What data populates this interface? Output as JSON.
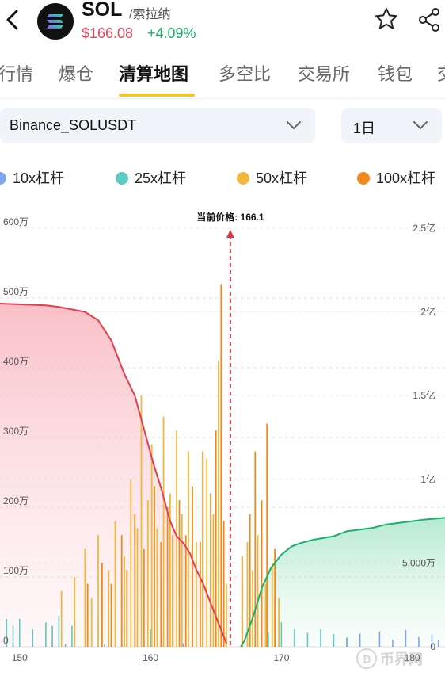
{
  "header": {
    "symbol": "SOL",
    "name_cn": "/索拉纳",
    "price": "$166.08",
    "change": "+4.09%",
    "price_color": "#e8445a",
    "change_color": "#17b26a"
  },
  "tabs": [
    {
      "label": "行情"
    },
    {
      "label": "爆仓"
    },
    {
      "label": "清算地图",
      "active": true
    },
    {
      "label": "多空比"
    },
    {
      "label": "交易所"
    },
    {
      "label": "钱包"
    },
    {
      "label": "交"
    }
  ],
  "filters": {
    "pair": "Binance_SOLUSDT",
    "timeframe": "1日"
  },
  "legend": [
    {
      "label": "10x杠杆",
      "color": "#7ea7ef"
    },
    {
      "label": "25x杠杆",
      "color": "#5fcac1"
    },
    {
      "label": "50x杠杆",
      "color": "#f3b73b"
    },
    {
      "label": "100x杠杆",
      "color": "#f08a1c"
    }
  ],
  "watermark": "币界网",
  "chart_data": {
    "type": "bar",
    "current_price_label": "当前价格: 166.1",
    "current_price": 166.1,
    "x_ticks": [
      "150",
      "160",
      "170",
      "180"
    ],
    "xlim": [
      148.5,
      182.5
    ],
    "left_axis": {
      "ticks": [
        "0",
        "100万",
        "200万",
        "300万",
        "400万",
        "500万",
        "600万"
      ],
      "ylim": [
        0,
        6000000
      ]
    },
    "right_axis": {
      "ticks": [
        "0",
        "5,000万",
        "1亿",
        "1.5亿",
        "2亿",
        "2.5亿"
      ],
      "ylim": [
        0,
        250000000
      ]
    },
    "grid": true,
    "bars_10x_values": [
      [
        149.5,
        45000
      ],
      [
        151.0,
        35000
      ],
      [
        152.5,
        60000
      ],
      [
        153.5,
        40000
      ],
      [
        155.0,
        55000
      ],
      [
        156.5,
        35000
      ],
      [
        158.0,
        45000
      ],
      [
        159.5,
        60000
      ],
      [
        161.0,
        40000
      ],
      [
        162.5,
        50000
      ],
      [
        175.0,
        130000
      ],
      [
        176.0,
        190000
      ],
      [
        177.5,
        220000
      ],
      [
        178.5,
        100000
      ],
      [
        179.5,
        240000
      ],
      [
        180.5,
        140000
      ],
      [
        181.5,
        180000
      ],
      [
        182.0,
        90000
      ]
    ],
    "bars_25x_values": [
      [
        149.0,
        400000
      ],
      [
        149.5,
        300000
      ],
      [
        150.0,
        400000
      ],
      [
        151.0,
        250000
      ],
      [
        152.0,
        350000
      ],
      [
        152.5,
        300000
      ],
      [
        153.0,
        450000
      ],
      [
        154.0,
        300000
      ],
      [
        155.0,
        350000
      ],
      [
        156.0,
        380000
      ],
      [
        157.0,
        250000
      ],
      [
        158.0,
        300000
      ],
      [
        159.0,
        280000
      ],
      [
        160.0,
        250000
      ],
      [
        161.0,
        200000
      ],
      [
        169.0,
        200000
      ],
      [
        170.0,
        350000
      ],
      [
        171.0,
        250000
      ],
      [
        172.0,
        200000
      ],
      [
        173.0,
        250000
      ],
      [
        174.0,
        180000
      ],
      [
        175.0,
        130000
      ],
      [
        176.0,
        100000
      ]
    ],
    "bars_50x_values": [
      [
        153.2,
        800000
      ],
      [
        154.2,
        1000000
      ],
      [
        155.0,
        1400000
      ],
      [
        155.5,
        700000
      ],
      [
        156.0,
        1600000
      ],
      [
        156.8,
        1100000
      ],
      [
        157.3,
        1800000
      ],
      [
        158.0,
        1300000
      ],
      [
        158.5,
        2400000
      ],
      [
        159.0,
        1700000
      ],
      [
        159.3,
        3600000
      ],
      [
        159.8,
        2100000
      ],
      [
        160.1,
        2900000
      ],
      [
        160.5,
        1700000
      ],
      [
        161.0,
        3300000
      ],
      [
        161.5,
        2200000
      ],
      [
        162.0,
        3100000
      ],
      [
        162.4,
        1900000
      ],
      [
        162.9,
        2800000
      ],
      [
        163.5,
        1500000
      ],
      [
        164.3,
        2700000
      ],
      [
        164.8,
        1900000
      ],
      [
        165.2,
        4100000
      ],
      [
        165.8,
        900000
      ],
      [
        167.4,
        1500000
      ],
      [
        167.8,
        1100000
      ],
      [
        168.2,
        1600000
      ],
      [
        168.8,
        900000
      ],
      [
        169.3,
        1200000
      ],
      [
        169.8,
        700000
      ]
    ],
    "bars_100x_values": [
      [
        155.2,
        900000
      ],
      [
        156.3,
        1200000
      ],
      [
        157.0,
        900000
      ],
      [
        157.8,
        1600000
      ],
      [
        158.2,
        1100000
      ],
      [
        158.8,
        1900000
      ],
      [
        159.5,
        1400000
      ],
      [
        160.3,
        2300000
      ],
      [
        160.8,
        1500000
      ],
      [
        161.3,
        2000000
      ],
      [
        161.7,
        1600000
      ],
      [
        162.2,
        2100000
      ],
      [
        162.7,
        1600000
      ],
      [
        163.2,
        2300000
      ],
      [
        163.8,
        1500000
      ],
      [
        164.0,
        2800000
      ],
      [
        164.6,
        2200000
      ],
      [
        165.0,
        3100000
      ],
      [
        165.4,
        5200000
      ],
      [
        165.6,
        1800000
      ],
      [
        167.0,
        1300000
      ],
      [
        167.6,
        1900000
      ],
      [
        168.0,
        2800000
      ],
      [
        168.5,
        2100000
      ],
      [
        168.9,
        3200000
      ],
      [
        169.5,
        1400000
      ]
    ],
    "short_cumulative": {
      "name": "",
      "color": "#e63c4c",
      "points": [
        [
          148.5,
          205000000
        ],
        [
          152.0,
          204000000
        ],
        [
          153.0,
          203000000
        ],
        [
          155.0,
          200000000
        ],
        [
          156.0,
          195000000
        ],
        [
          157.0,
          183000000
        ],
        [
          158.0,
          163000000
        ],
        [
          158.8,
          150000000
        ],
        [
          159.5,
          130000000
        ],
        [
          160.2,
          110000000
        ],
        [
          160.8,
          95000000
        ],
        [
          161.5,
          75000000
        ],
        [
          162.0,
          66000000
        ],
        [
          162.5,
          62000000
        ],
        [
          163.0,
          56000000
        ],
        [
          163.5,
          46000000
        ],
        [
          164.0,
          38000000
        ],
        [
          164.5,
          28000000
        ],
        [
          165.0,
          18000000
        ],
        [
          165.5,
          8000000
        ],
        [
          165.8,
          2000000
        ]
      ]
    },
    "long_cumulative": {
      "name": "",
      "color": "#17b26a",
      "points": [
        [
          166.9,
          0
        ],
        [
          167.2,
          4000000
        ],
        [
          167.8,
          17000000
        ],
        [
          168.5,
          35000000
        ],
        [
          169.2,
          47000000
        ],
        [
          170.0,
          55000000
        ],
        [
          170.8,
          60000000
        ],
        [
          171.5,
          62000000
        ],
        [
          172.5,
          64000000
        ],
        [
          174.0,
          66000000
        ],
        [
          175.0,
          69000000
        ],
        [
          176.0,
          70000000
        ],
        [
          177.0,
          71000000
        ],
        [
          178.0,
          73000000
        ],
        [
          179.0,
          74000000
        ],
        [
          180.0,
          75000000
        ],
        [
          181.0,
          76000000
        ],
        [
          182.5,
          77000000
        ]
      ]
    }
  }
}
